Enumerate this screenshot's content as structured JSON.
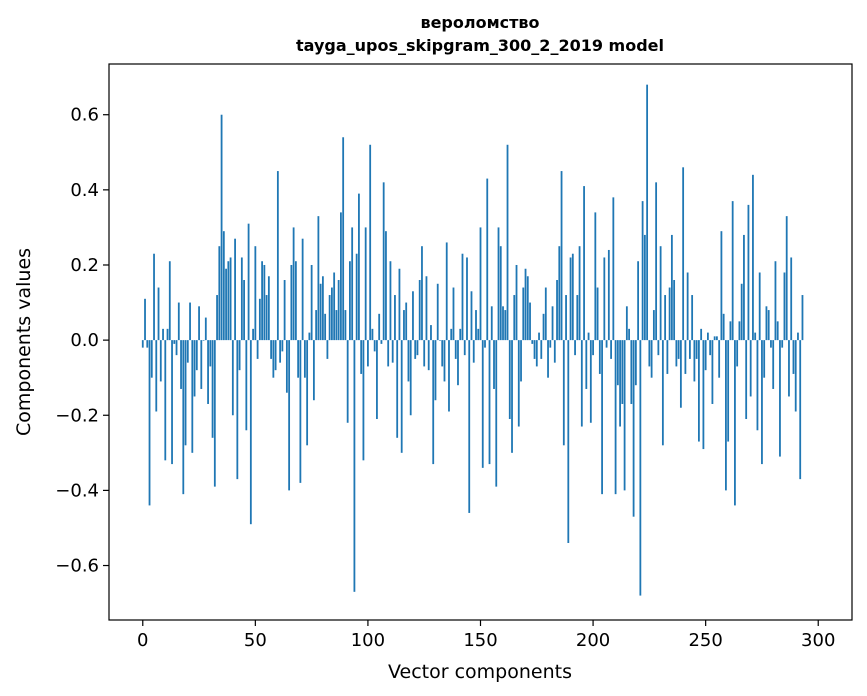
{
  "chart_data": {
    "type": "bar",
    "title": "вероломство",
    "subtitle": "tayga_upos_skipgram_300_2_2019 model",
    "xlabel": "Vector components",
    "ylabel": "Components values",
    "xlim": [
      -15,
      315
    ],
    "ylim": [
      -0.745,
      0.735
    ],
    "xticks": [
      0,
      50,
      100,
      150,
      200,
      250,
      300
    ],
    "xtick_labels": [
      "0",
      "50",
      "100",
      "150",
      "200",
      "250",
      "300"
    ],
    "yticks": [
      -0.6,
      -0.4,
      -0.2,
      0.0,
      0.2,
      0.4,
      0.6
    ],
    "ytick_labels": [
      "−0.6",
      "−0.4",
      "−0.2",
      "0.0",
      "0.2",
      "0.4",
      "0.6"
    ],
    "grid": false,
    "legend": "none",
    "bar_color": "#1f77b4",
    "values": [
      -0.02,
      0.11,
      -0.02,
      -0.44,
      -0.1,
      0.23,
      -0.19,
      0.14,
      -0.11,
      0.03,
      -0.32,
      0.03,
      0.21,
      -0.33,
      -0.01,
      -0.04,
      0.1,
      -0.13,
      -0.41,
      -0.28,
      -0.06,
      0.1,
      -0.3,
      -0.15,
      -0.08,
      0.09,
      -0.13,
      0.0,
      0.06,
      -0.17,
      -0.07,
      -0.26,
      -0.39,
      0.12,
      0.25,
      0.6,
      0.29,
      0.19,
      0.21,
      0.22,
      -0.2,
      0.27,
      -0.37,
      -0.08,
      0.22,
      0.16,
      -0.24,
      0.31,
      -0.49,
      0.03,
      0.25,
      -0.05,
      0.11,
      0.21,
      0.2,
      0.12,
      0.17,
      -0.05,
      -0.1,
      -0.08,
      0.45,
      -0.06,
      -0.03,
      0.16,
      -0.14,
      -0.4,
      0.2,
      0.3,
      0.21,
      -0.1,
      -0.38,
      0.27,
      -0.1,
      -0.28,
      0.02,
      0.2,
      -0.16,
      0.08,
      0.33,
      0.15,
      0.17,
      0.07,
      -0.05,
      0.12,
      0.14,
      0.18,
      0.08,
      0.16,
      0.34,
      0.54,
      0.08,
      -0.22,
      0.21,
      0.3,
      -0.67,
      0.23,
      0.39,
      -0.09,
      -0.32,
      0.3,
      -0.07,
      0.52,
      0.03,
      -0.03,
      -0.21,
      0.07,
      -0.01,
      0.42,
      0.29,
      -0.07,
      0.21,
      -0.06,
      0.12,
      -0.26,
      0.19,
      -0.3,
      0.08,
      0.1,
      -0.11,
      -0.2,
      0.13,
      -0.05,
      -0.04,
      0.16,
      0.25,
      -0.07,
      0.17,
      -0.08,
      0.04,
      -0.33,
      -0.16,
      0.15,
      0.0,
      -0.07,
      -0.11,
      0.26,
      -0.19,
      0.03,
      0.14,
      -0.05,
      -0.12,
      0.03,
      0.23,
      -0.04,
      0.22,
      -0.46,
      0.13,
      -0.06,
      0.08,
      0.03,
      0.3,
      -0.34,
      -0.02,
      0.43,
      -0.33,
      0.09,
      -0.13,
      -0.39,
      0.3,
      0.25,
      0.09,
      0.08,
      0.52,
      -0.21,
      -0.3,
      0.12,
      0.2,
      -0.23,
      -0.11,
      0.14,
      0.19,
      0.17,
      0.1,
      -0.01,
      -0.05,
      -0.07,
      0.02,
      -0.05,
      0.07,
      0.14,
      -0.1,
      -0.02,
      0.09,
      -0.06,
      0.16,
      0.25,
      0.45,
      -0.28,
      0.12,
      -0.54,
      0.22,
      0.23,
      -0.04,
      0.12,
      0.25,
      -0.23,
      0.41,
      -0.13,
      0.02,
      -0.22,
      -0.04,
      0.34,
      0.14,
      -0.09,
      -0.41,
      0.22,
      -0.02,
      0.24,
      -0.05,
      0.38,
      -0.41,
      -0.12,
      -0.23,
      -0.17,
      -0.4,
      0.09,
      0.03,
      -0.17,
      -0.47,
      -0.12,
      0.21,
      -0.68,
      0.37,
      0.28,
      0.68,
      -0.07,
      -0.1,
      0.08,
      0.42,
      -0.04,
      0.25,
      -0.28,
      0.12,
      -0.09,
      0.14,
      0.28,
      0.16,
      -0.07,
      -0.05,
      -0.18,
      0.46,
      -0.09,
      0.18,
      -0.05,
      0.12,
      -0.11,
      -0.05,
      -0.27,
      0.03,
      -0.29,
      -0.08,
      0.02,
      -0.04,
      -0.17,
      0.01,
      0.01,
      -0.1,
      0.29,
      0.07,
      -0.4,
      -0.27,
      0.05,
      0.37,
      -0.44,
      -0.07,
      0.05,
      0.15,
      0.28,
      -0.21,
      0.36,
      -0.15,
      0.44,
      0.02,
      -0.24,
      0.18,
      -0.33,
      -0.1,
      0.09,
      0.08,
      -0.02,
      -0.13,
      0.21,
      0.05,
      -0.31,
      -0.02,
      0.18,
      0.33,
      -0.15,
      0.22,
      -0.09,
      -0.19,
      0.02,
      -0.37,
      0.12
    ]
  }
}
